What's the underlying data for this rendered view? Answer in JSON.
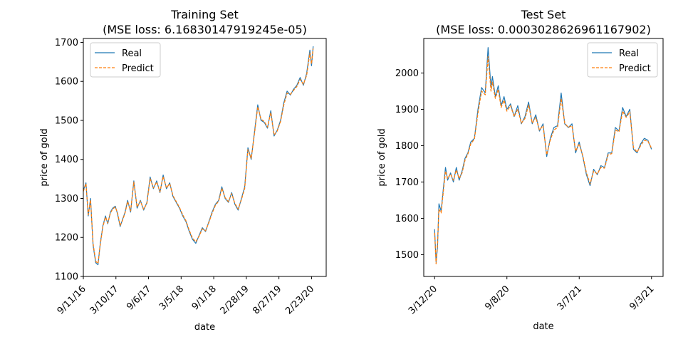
{
  "chart_data": [
    {
      "type": "line",
      "title": "Training Set",
      "subtitle": "(MSE loss: 6.16830147919245e-05)",
      "xlabel": "date",
      "ylabel": "price of gold",
      "xticks": [
        "9/11/16",
        "3/10/17",
        "9/6/17",
        "3/5/18",
        "9/1/18",
        "2/28/19",
        "8/27/19",
        "2/23/20"
      ],
      "xlim": [
        0,
        7.45
      ],
      "ylim": [
        1100,
        1710
      ],
      "yticks": [
        1100,
        1200,
        1300,
        1400,
        1500,
        1600,
        1700
      ],
      "grid": false,
      "legend": "top-left",
      "series": [
        {
          "name": "Real",
          "color": "#1f77b4",
          "style": "solid",
          "x": [
            0,
            0.08,
            0.15,
            0.22,
            0.3,
            0.38,
            0.45,
            0.52,
            0.6,
            0.68,
            0.75,
            0.83,
            0.9,
            0.98,
            1.05,
            1.13,
            1.2,
            1.28,
            1.36,
            1.45,
            1.55,
            1.65,
            1.75,
            1.85,
            1.95,
            2.05,
            2.15,
            2.25,
            2.35,
            2.45,
            2.55,
            2.65,
            2.75,
            2.85,
            2.95,
            3.05,
            3.15,
            3.25,
            3.35,
            3.45,
            3.55,
            3.65,
            3.75,
            3.85,
            3.95,
            4.05,
            4.15,
            4.25,
            4.35,
            4.45,
            4.55,
            4.65,
            4.75,
            4.85,
            4.95,
            5.05,
            5.15,
            5.25,
            5.35,
            5.45,
            5.55,
            5.65,
            5.75,
            5.85,
            5.95,
            6.05,
            6.15,
            6.25,
            6.35,
            6.45,
            6.55,
            6.65,
            6.75,
            6.85,
            6.95,
            7.0,
            7.05
          ],
          "values": [
            1320,
            1340,
            1255,
            1300,
            1180,
            1135,
            1130,
            1185,
            1230,
            1255,
            1235,
            1265,
            1275,
            1280,
            1260,
            1228,
            1245,
            1265,
            1295,
            1265,
            1345,
            1275,
            1295,
            1270,
            1290,
            1355,
            1325,
            1345,
            1315,
            1360,
            1325,
            1340,
            1305,
            1290,
            1275,
            1255,
            1240,
            1215,
            1195,
            1185,
            1205,
            1225,
            1215,
            1240,
            1265,
            1285,
            1295,
            1330,
            1300,
            1290,
            1315,
            1285,
            1270,
            1300,
            1330,
            1430,
            1400,
            1470,
            1540,
            1500,
            1495,
            1480,
            1525,
            1460,
            1475,
            1500,
            1545,
            1575,
            1565,
            1580,
            1590,
            1610,
            1590,
            1620,
            1680,
            1640,
            1690
          ]
        },
        {
          "name": "Predict",
          "color": "#ff7f0e",
          "style": "dashed",
          "x": [
            0,
            0.08,
            0.15,
            0.22,
            0.3,
            0.38,
            0.45,
            0.52,
            0.6,
            0.68,
            0.75,
            0.83,
            0.9,
            0.98,
            1.05,
            1.13,
            1.2,
            1.28,
            1.36,
            1.45,
            1.55,
            1.65,
            1.75,
            1.85,
            1.95,
            2.05,
            2.15,
            2.25,
            2.35,
            2.45,
            2.55,
            2.65,
            2.75,
            2.85,
            2.95,
            3.05,
            3.15,
            3.25,
            3.35,
            3.45,
            3.55,
            3.65,
            3.75,
            3.85,
            3.95,
            4.05,
            4.15,
            4.25,
            4.35,
            4.45,
            4.55,
            4.65,
            4.75,
            4.85,
            4.95,
            5.05,
            5.15,
            5.25,
            5.35,
            5.45,
            5.55,
            5.65,
            5.75,
            5.85,
            5.95,
            6.05,
            6.15,
            6.25,
            6.35,
            6.45,
            6.55,
            6.65,
            6.75,
            6.85,
            6.95,
            7.0,
            7.05
          ],
          "values": [
            1318,
            1338,
            1258,
            1296,
            1184,
            1139,
            1133,
            1182,
            1228,
            1252,
            1237,
            1262,
            1273,
            1278,
            1262,
            1231,
            1243,
            1263,
            1292,
            1268,
            1342,
            1278,
            1293,
            1272,
            1288,
            1351,
            1327,
            1342,
            1317,
            1356,
            1327,
            1338,
            1307,
            1292,
            1277,
            1258,
            1242,
            1218,
            1198,
            1189,
            1203,
            1222,
            1217,
            1238,
            1262,
            1282,
            1293,
            1326,
            1302,
            1292,
            1312,
            1287,
            1273,
            1297,
            1326,
            1425,
            1403,
            1466,
            1535,
            1503,
            1497,
            1483,
            1520,
            1463,
            1473,
            1497,
            1540,
            1570,
            1567,
            1577,
            1587,
            1605,
            1593,
            1615,
            1673,
            1645,
            1684
          ]
        }
      ]
    },
    {
      "type": "line",
      "title": "Test Set",
      "subtitle": "(MSE loss: 0.0003028626961167902)",
      "xlabel": "date",
      "ylabel": "price of gold",
      "xticks": [
        "3/12/20",
        "9/8/20",
        "3/7/21",
        "9/3/21"
      ],
      "xlim": [
        -0.15,
        3.16
      ],
      "ylim": [
        1440,
        2095
      ],
      "yticks": [
        1500,
        1600,
        1700,
        1800,
        1900,
        2000
      ],
      "grid": false,
      "legend": "top-right",
      "series": [
        {
          "name": "Real",
          "color": "#1f77b4",
          "style": "solid",
          "x": [
            0,
            0.02,
            0.04,
            0.06,
            0.09,
            0.12,
            0.15,
            0.18,
            0.22,
            0.26,
            0.3,
            0.34,
            0.38,
            0.42,
            0.46,
            0.5,
            0.55,
            0.6,
            0.65,
            0.7,
            0.74,
            0.78,
            0.8,
            0.84,
            0.88,
            0.92,
            0.96,
            1.0,
            1.05,
            1.1,
            1.15,
            1.2,
            1.25,
            1.3,
            1.35,
            1.4,
            1.45,
            1.5,
            1.55,
            1.6,
            1.65,
            1.7,
            1.75,
            1.8,
            1.85,
            1.9,
            1.95,
            2.0,
            2.05,
            2.1,
            2.15,
            2.2,
            2.25,
            2.3,
            2.35,
            2.4,
            2.45,
            2.5,
            2.55,
            2.6,
            2.65,
            2.7,
            2.75,
            2.8,
            2.85,
            2.9,
            2.95,
            3.0
          ],
          "values": [
            1570,
            1480,
            1520,
            1640,
            1620,
            1680,
            1740,
            1705,
            1725,
            1700,
            1740,
            1705,
            1730,
            1765,
            1780,
            1810,
            1820,
            1900,
            1960,
            1945,
            2070,
            1960,
            1990,
            1935,
            1965,
            1910,
            1935,
            1900,
            1915,
            1880,
            1910,
            1860,
            1880,
            1920,
            1860,
            1885,
            1840,
            1860,
            1770,
            1820,
            1850,
            1855,
            1945,
            1860,
            1850,
            1860,
            1780,
            1810,
            1770,
            1720,
            1690,
            1735,
            1720,
            1745,
            1740,
            1780,
            1780,
            1850,
            1840,
            1905,
            1880,
            1900,
            1790,
            1780,
            1805,
            1820,
            1815,
            1790
          ]
        },
        {
          "name": "Predict",
          "color": "#ff7f0e",
          "style": "dashed",
          "x": [
            0,
            0.02,
            0.04,
            0.06,
            0.09,
            0.12,
            0.15,
            0.18,
            0.22,
            0.26,
            0.3,
            0.34,
            0.38,
            0.42,
            0.46,
            0.5,
            0.55,
            0.6,
            0.65,
            0.7,
            0.74,
            0.78,
            0.8,
            0.84,
            0.88,
            0.92,
            0.96,
            1.0,
            1.05,
            1.1,
            1.15,
            1.2,
            1.25,
            1.3,
            1.35,
            1.4,
            1.45,
            1.5,
            1.55,
            1.6,
            1.65,
            1.7,
            1.75,
            1.8,
            1.85,
            1.9,
            1.95,
            2.0,
            2.05,
            2.1,
            2.15,
            2.2,
            2.25,
            2.3,
            2.35,
            2.4,
            2.45,
            2.5,
            2.55,
            2.6,
            2.65,
            2.7,
            2.75,
            2.8,
            2.85,
            2.9,
            2.95,
            3.0
          ],
          "values": [
            1560,
            1475,
            1530,
            1625,
            1615,
            1672,
            1730,
            1710,
            1722,
            1705,
            1733,
            1710,
            1725,
            1760,
            1777,
            1805,
            1818,
            1890,
            1950,
            1940,
            2045,
            1950,
            1975,
            1930,
            1955,
            1905,
            1925,
            1895,
            1910,
            1880,
            1900,
            1862,
            1875,
            1912,
            1862,
            1878,
            1843,
            1855,
            1775,
            1815,
            1843,
            1850,
            1930,
            1862,
            1850,
            1855,
            1785,
            1805,
            1772,
            1725,
            1695,
            1730,
            1722,
            1740,
            1738,
            1775,
            1778,
            1843,
            1838,
            1895,
            1878,
            1893,
            1795,
            1782,
            1800,
            1815,
            1812,
            1793
          ]
        }
      ]
    }
  ]
}
